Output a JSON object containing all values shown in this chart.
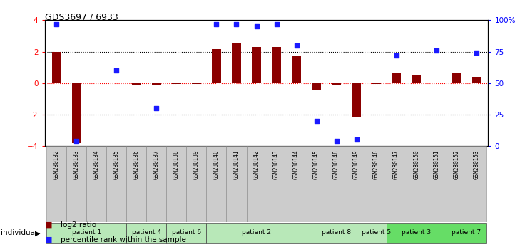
{
  "title": "GDS3697 / 6933",
  "samples": [
    "GSM280132",
    "GSM280133",
    "GSM280134",
    "GSM280135",
    "GSM280136",
    "GSM280137",
    "GSM280138",
    "GSM280139",
    "GSM280140",
    "GSM280141",
    "GSM280142",
    "GSM280143",
    "GSM280144",
    "GSM280145",
    "GSM280148",
    "GSM280149",
    "GSM280146",
    "GSM280147",
    "GSM280150",
    "GSM280151",
    "GSM280152",
    "GSM280153"
  ],
  "log2_ratio": [
    2.0,
    -3.8,
    0.05,
    0.0,
    -0.1,
    -0.1,
    -0.05,
    -0.05,
    2.15,
    2.55,
    2.3,
    2.3,
    1.7,
    -0.4,
    -0.1,
    -2.15,
    -0.05,
    0.65,
    0.5,
    0.05,
    0.65,
    0.4
  ],
  "percentile": [
    97,
    4,
    null,
    60,
    null,
    30,
    null,
    null,
    97,
    97,
    95,
    97,
    80,
    20,
    4,
    5,
    null,
    72,
    null,
    76,
    null,
    74
  ],
  "patients": [
    {
      "label": "patient 1",
      "start": 0,
      "end": 4,
      "bright": false
    },
    {
      "label": "patient 4",
      "start": 4,
      "end": 6,
      "bright": false
    },
    {
      "label": "patient 6",
      "start": 6,
      "end": 8,
      "bright": false
    },
    {
      "label": "patient 2",
      "start": 8,
      "end": 13,
      "bright": false
    },
    {
      "label": "patient 8",
      "start": 13,
      "end": 16,
      "bright": false
    },
    {
      "label": "patient 5",
      "start": 16,
      "end": 17,
      "bright": false
    },
    {
      "label": "patient 3",
      "start": 17,
      "end": 20,
      "bright": true
    },
    {
      "label": "patient 7",
      "start": 20,
      "end": 22,
      "bright": true
    }
  ],
  "ylim_left": [
    -4,
    4
  ],
  "ylim_right": [
    0,
    100
  ],
  "bar_color": "#8B0000",
  "dot_color": "#1a1aff",
  "light_green": "#b8e8b8",
  "bright_green": "#66dd66",
  "sample_bg": "#cccccc",
  "dotted_line_color": "#000000",
  "zero_line_color": "#FF0000"
}
